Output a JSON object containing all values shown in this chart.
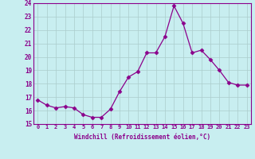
{
  "x": [
    0,
    1,
    2,
    3,
    4,
    5,
    6,
    7,
    8,
    9,
    10,
    11,
    12,
    13,
    14,
    15,
    16,
    17,
    18,
    19,
    20,
    21,
    22,
    23
  ],
  "y": [
    16.8,
    16.4,
    16.2,
    16.3,
    16.2,
    15.7,
    15.5,
    15.5,
    16.1,
    17.4,
    18.5,
    18.9,
    20.3,
    20.3,
    21.5,
    23.8,
    22.5,
    20.3,
    20.5,
    19.8,
    19.0,
    18.1,
    17.9,
    17.9
  ],
  "line_color": "#8B008B",
  "marker": "D",
  "marker_size": 2.5,
  "bg_color": "#c8eef0",
  "grid_color": "#aacccc",
  "xlabel": "Windchill (Refroidissement éolien,°C)",
  "xlabel_color": "#8B008B",
  "tick_color": "#8B008B",
  "ylim": [
    15,
    24
  ],
  "xlim": [
    -0.5,
    23.5
  ],
  "yticks": [
    15,
    16,
    17,
    18,
    19,
    20,
    21,
    22,
    23,
    24
  ],
  "xticks": [
    0,
    1,
    2,
    3,
    4,
    5,
    6,
    7,
    8,
    9,
    10,
    11,
    12,
    13,
    14,
    15,
    16,
    17,
    18,
    19,
    20,
    21,
    22,
    23
  ],
  "font_family": "monospace"
}
